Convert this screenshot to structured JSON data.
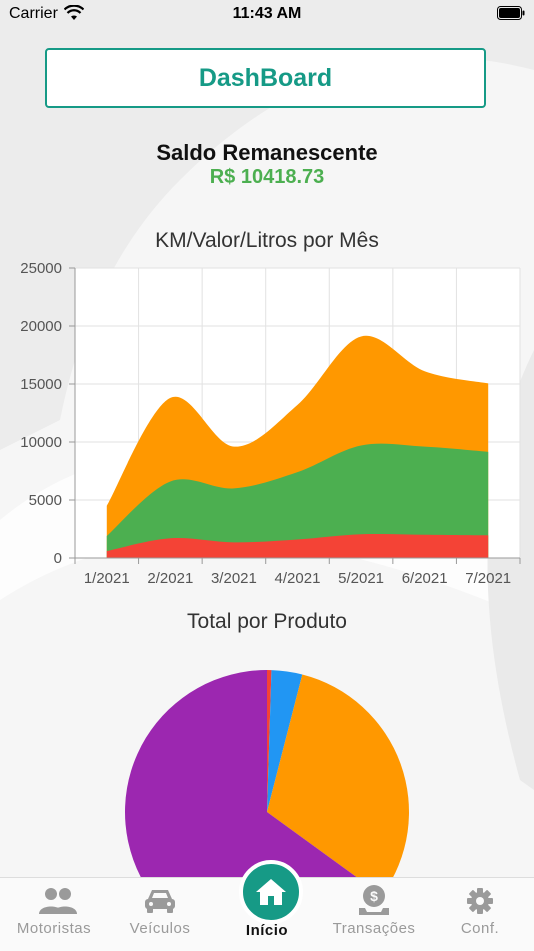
{
  "status_bar": {
    "carrier": "Carrier",
    "time": "11:43 AM",
    "wifi_icon": "wifi-icon",
    "battery_icon": "battery-icon"
  },
  "header": {
    "dashboard_label": "DashBoard"
  },
  "saldo": {
    "title": "Saldo Remanescente",
    "value": "R$ 10418.73"
  },
  "colors": {
    "accent": "#169a86",
    "positive": "#4caf50",
    "series_orange": "#ff9800",
    "series_green": "#4caf50",
    "series_red": "#f44336",
    "pie_purple": "#9c27b0",
    "pie_blue": "#2196f3"
  },
  "chart_data": [
    {
      "type": "area",
      "stacked": true,
      "title": "KM/Valor/Litros por Mês",
      "categories": [
        "1/2021",
        "2/2021",
        "3/2021",
        "4/2021",
        "5/2021",
        "6/2021",
        "7/2021"
      ],
      "ylim": [
        0,
        25000
      ],
      "yticks": [
        0,
        5000,
        10000,
        15000,
        20000,
        25000
      ],
      "grid": true,
      "series": [
        {
          "color": "#f44336",
          "values": [
            600,
            1700,
            1350,
            1600,
            2050,
            2000,
            1950
          ]
        },
        {
          "color": "#4caf50",
          "values": [
            1300,
            4900,
            4650,
            5800,
            7650,
            7600,
            7200
          ]
        },
        {
          "color": "#ff9800",
          "values": [
            2600,
            7200,
            3600,
            5800,
            9400,
            6500,
            5900
          ]
        }
      ]
    },
    {
      "type": "pie",
      "title": "Total por Produto",
      "slices": [
        {
          "color": "#f44336",
          "value": 0.5
        },
        {
          "color": "#2196f3",
          "value": 3.5
        },
        {
          "color": "#ff9800",
          "value": 31
        },
        {
          "color": "#9c27b0",
          "value": 65
        }
      ]
    }
  ],
  "tabbar": {
    "items": [
      {
        "label": "Motoristas",
        "icon": "users-icon"
      },
      {
        "label": "Veículos",
        "icon": "car-icon"
      },
      {
        "label": "Início",
        "icon": "home-icon",
        "active": true
      },
      {
        "label": "Transações",
        "icon": "money-bag-icon"
      },
      {
        "label": "Conf.",
        "icon": "gear-icon"
      }
    ]
  }
}
